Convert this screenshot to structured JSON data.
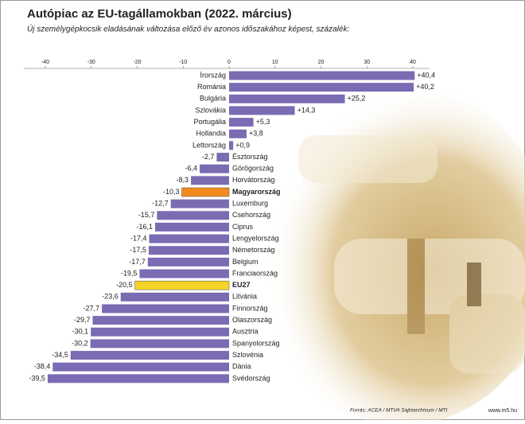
{
  "chart_data": {
    "type": "bar",
    "orientation": "horizontal",
    "title": "Autópiac az EU-tagállamokban (2022. március)",
    "subtitle": "Új személygépkocsik eladásának változása előző év azonos időszakához képest, százalék:",
    "categories": [
      "Írország",
      "Románia",
      "Bulgária",
      "Szlovákia",
      "Portugália",
      "Hollandia",
      "Lettország",
      "Észtország",
      "Görögország",
      "Horvátország",
      "Magyarország",
      "Luxemburg",
      "Csehország",
      "Ciprus",
      "Lengyelország",
      "Németország",
      "Belgium",
      "Franciaország",
      "EU27",
      "Litvánia",
      "Finnország",
      "Olaszország",
      "Ausztria",
      "Spanyolország",
      "Szlovénia",
      "Dánia",
      "Svédország"
    ],
    "values": [
      40.4,
      40.2,
      25.2,
      14.3,
      5.3,
      3.8,
      0.9,
      -2.7,
      -6.4,
      -8.3,
      -10.3,
      -12.7,
      -15.7,
      -16.1,
      -17.4,
      -17.5,
      -17.7,
      -19.5,
      -20.5,
      -23.6,
      -27.7,
      -29.7,
      -30.1,
      -30.2,
      -34.5,
      -38.4,
      -39.5
    ],
    "value_labels": [
      "+40,4",
      "+40,2",
      "+25,2",
      "+14,3",
      "+5,3",
      "+3,8",
      "+0,9",
      "-2,7",
      "-6,4",
      "-8,3",
      "-10,3",
      "-12,7",
      "-15,7",
      "-16,1",
      "-17,4",
      "-17,5",
      "-17,7",
      "-19,5",
      "-20,5",
      "-23,6",
      "-27,7",
      "-29,7",
      "-30,1",
      "-30,2",
      "-34,5",
      "-38,4",
      "-39,5"
    ],
    "colors": [
      "#7b6bb3",
      "#7b6bb3",
      "#7b6bb3",
      "#7b6bb3",
      "#7b6bb3",
      "#7b6bb3",
      "#7b6bb3",
      "#7b6bb3",
      "#7b6bb3",
      "#7b6bb3",
      "#f28a1e",
      "#7b6bb3",
      "#7b6bb3",
      "#7b6bb3",
      "#7b6bb3",
      "#7b6bb3",
      "#7b6bb3",
      "#7b6bb3",
      "#f5d327",
      "#7b6bb3",
      "#7b6bb3",
      "#7b6bb3",
      "#7b6bb3",
      "#7b6bb3",
      "#7b6bb3",
      "#7b6bb3",
      "#7b6bb3"
    ],
    "xlim": [
      -40,
      40
    ],
    "xticks": [
      -40,
      -30,
      -20,
      -10,
      0,
      10,
      20,
      30,
      40
    ],
    "source": "Forrás: ACEA / MTVA Sajtóarchívum / MTI",
    "website": "www.m5.hu"
  }
}
